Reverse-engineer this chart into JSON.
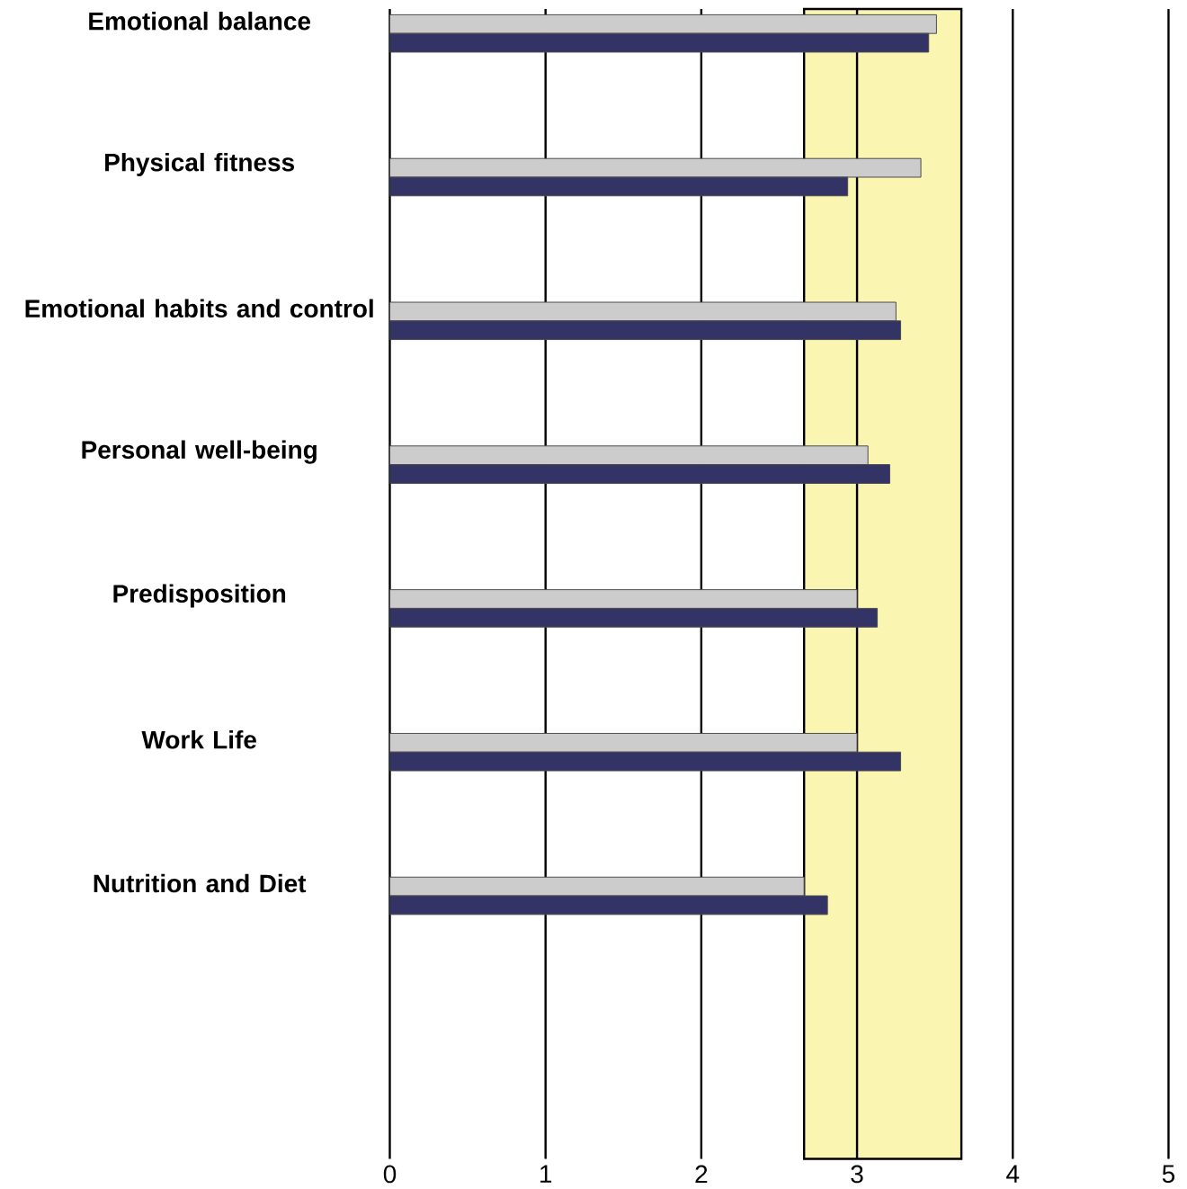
{
  "chart_data": {
    "type": "bar",
    "orientation": "horizontal",
    "categories": [
      "Emotional balance",
      "Physical fitness",
      "Emotional habits and control",
      "Personal well-being",
      "Predisposition",
      "Work Life",
      "Nutrition and Diet"
    ],
    "series": [
      {
        "color": "#cccccc",
        "values": [
          3.51,
          3.41,
          3.25,
          3.07,
          3.0,
          3.0,
          2.66
        ]
      },
      {
        "color": "#333366",
        "values": [
          3.46,
          2.94,
          3.28,
          3.21,
          3.13,
          3.28,
          2.81
        ]
      }
    ],
    "xlim": [
      0,
      5
    ],
    "xticks": [
      0,
      1,
      2,
      3,
      4,
      5
    ],
    "grid": "x",
    "bands": [
      {
        "axis": "x",
        "from": 2.66,
        "to": 3.67,
        "color": "#faf5b0"
      }
    ]
  }
}
